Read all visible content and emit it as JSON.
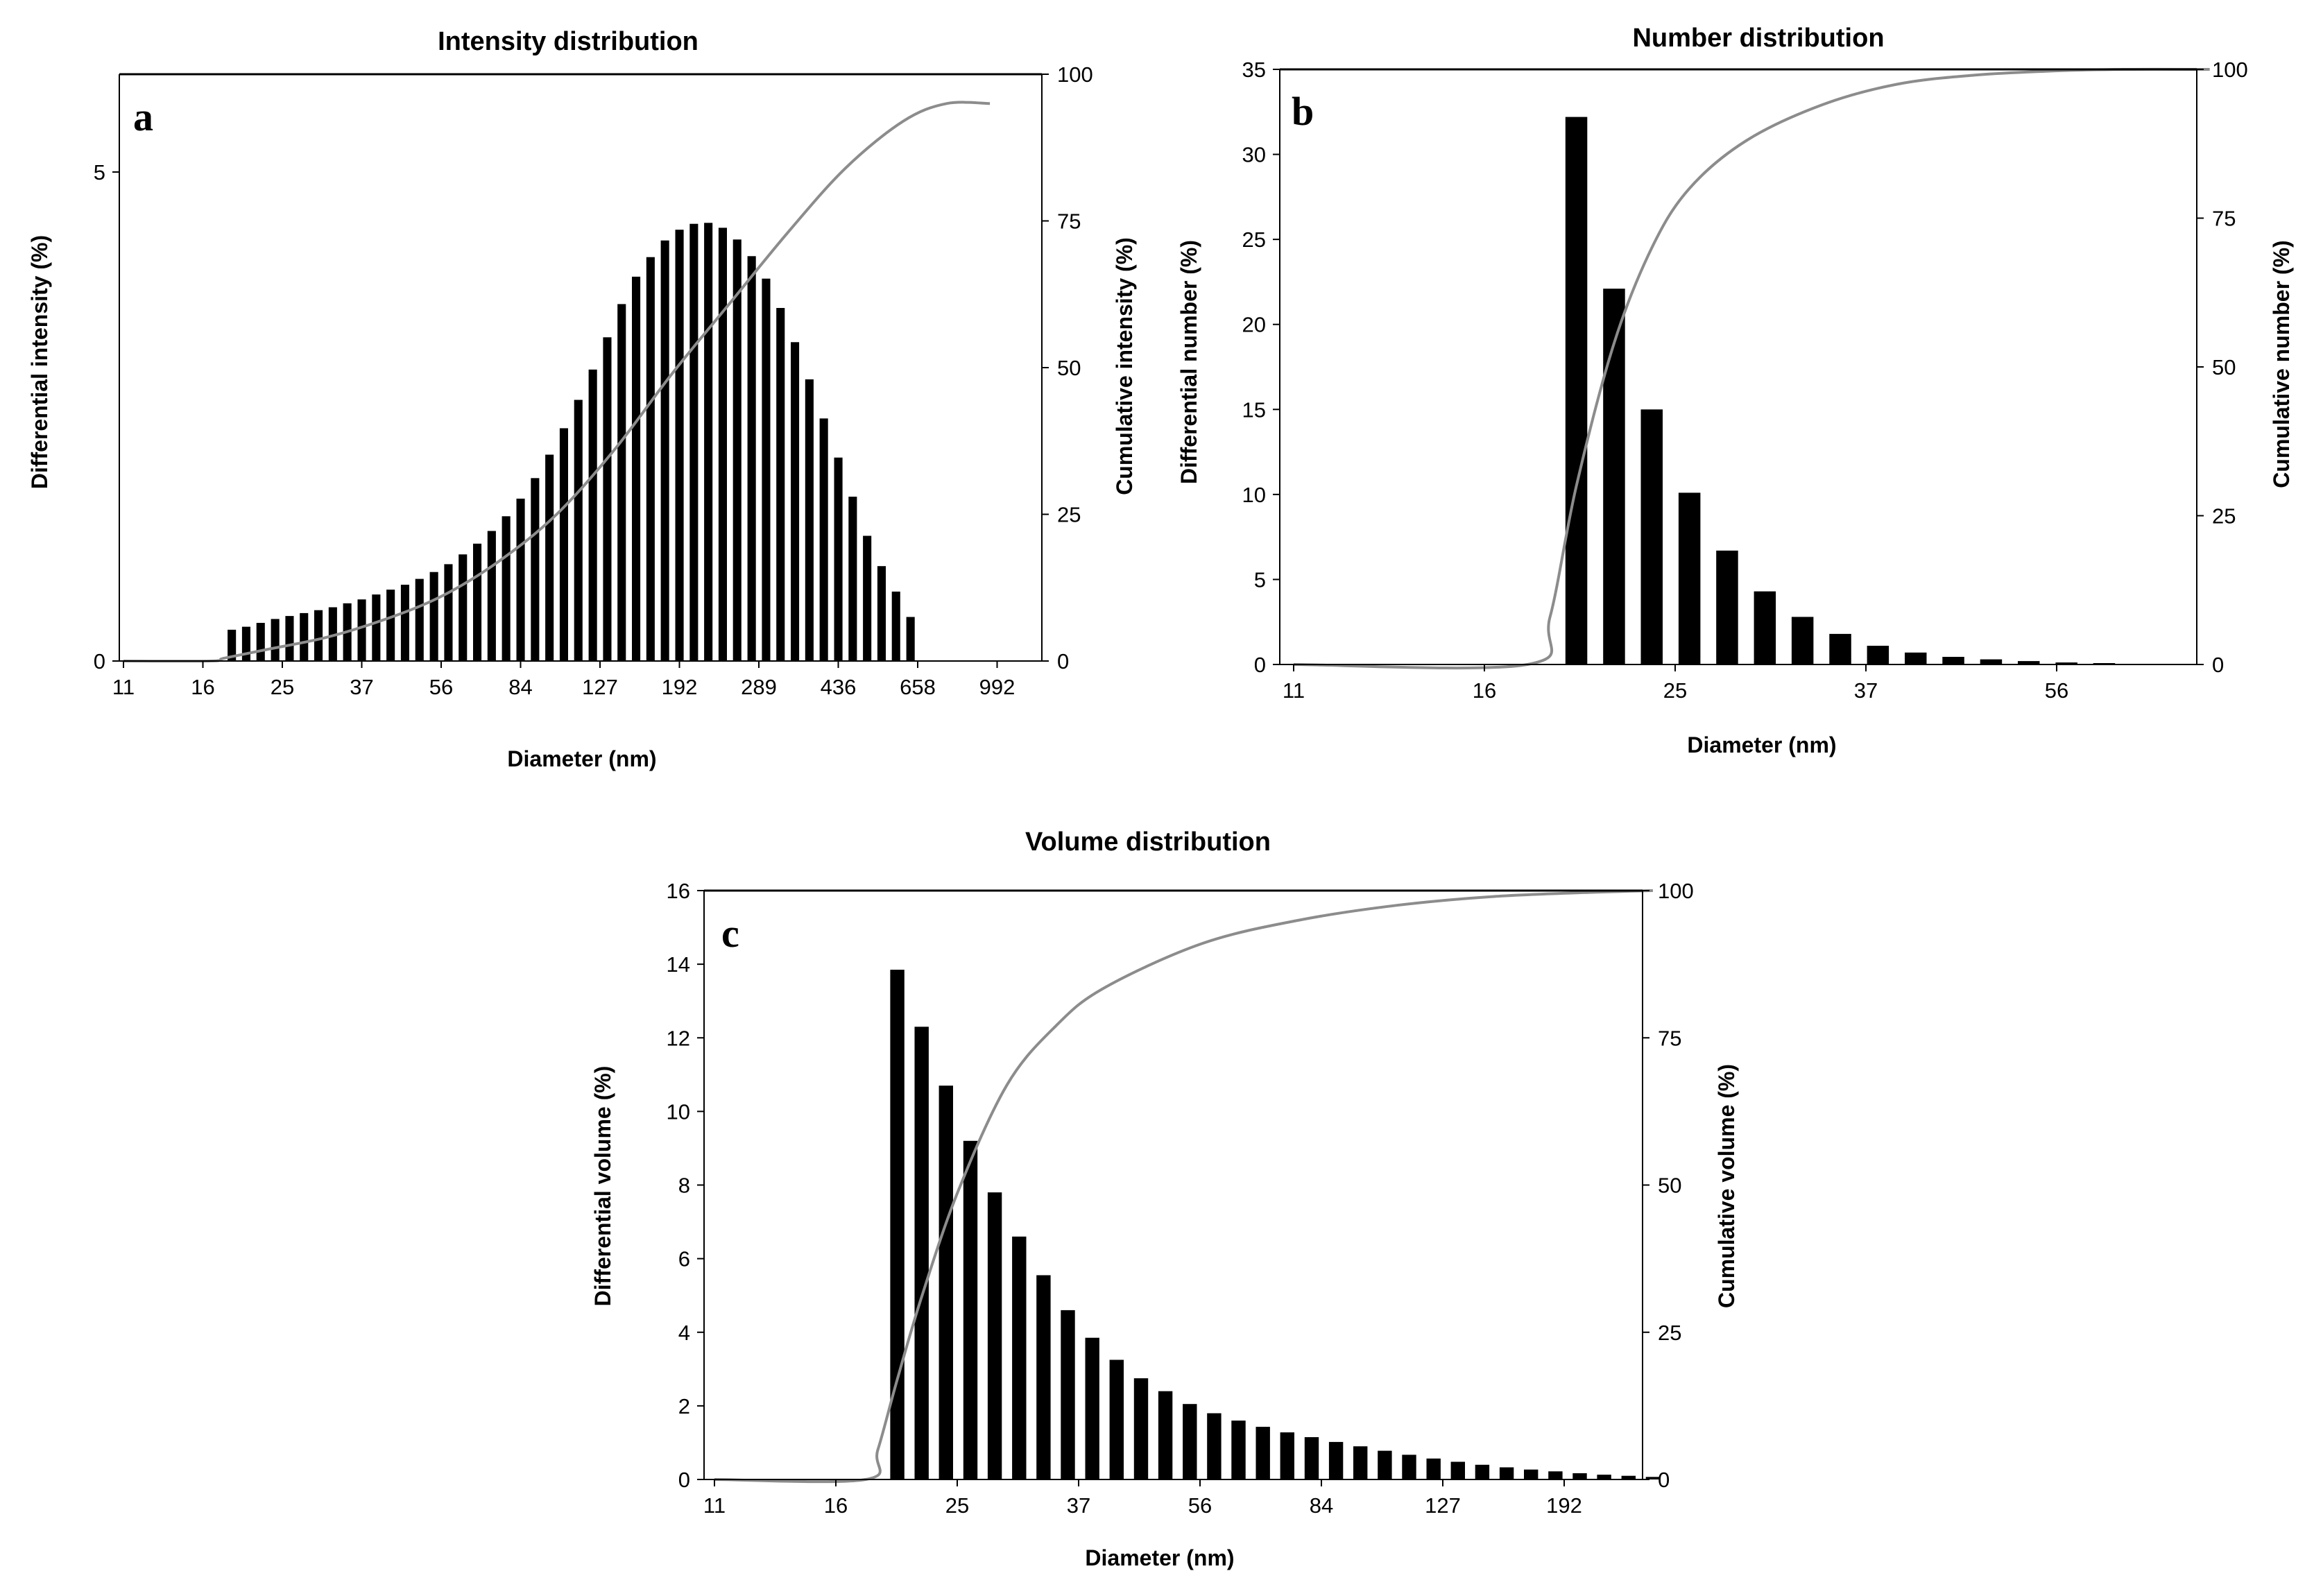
{
  "colors": {
    "bars": "#000000",
    "cumulative_line": "#8c8c8c",
    "axes": "#000000"
  },
  "chart_data": [
    {
      "id": "a",
      "type": "bar",
      "panel_label": "a",
      "title": "Intensity distribution",
      "xlabel": "Diameter (nm)",
      "ylabel": "Differential intensity (%)",
      "y2label": "Cumulative intensity (%)",
      "x_tick_labels": [
        "11",
        "16",
        "25",
        "37",
        "56",
        "84",
        "127",
        "192",
        "289",
        "436",
        "658",
        "992"
      ],
      "y_ticks": [
        0,
        5
      ],
      "y2_ticks": [
        0,
        25,
        50,
        75,
        100
      ],
      "ylim": [
        0,
        6
      ],
      "y2lim": [
        0,
        100
      ],
      "bin_range": [
        0,
        60
      ],
      "first_bar_bin": 7,
      "values": [
        0.32,
        0.35,
        0.39,
        0.43,
        0.46,
        0.49,
        0.52,
        0.55,
        0.59,
        0.63,
        0.68,
        0.73,
        0.78,
        0.84,
        0.91,
        0.99,
        1.09,
        1.2,
        1.33,
        1.48,
        1.66,
        1.87,
        2.11,
        2.38,
        2.67,
        2.98,
        3.31,
        3.65,
        3.93,
        4.13,
        4.3,
        4.41,
        4.47,
        4.48,
        4.43,
        4.31,
        4.14,
        3.91,
        3.61,
        3.26,
        2.88,
        2.48,
        2.08,
        1.68,
        1.28,
        0.97,
        0.71,
        0.45
      ],
      "cumulative": [
        [
          0,
          0
        ],
        [
          6,
          0
        ],
        [
          7,
          0.5
        ],
        [
          10,
          2
        ],
        [
          14,
          4
        ],
        [
          18,
          7
        ],
        [
          22,
          11
        ],
        [
          26,
          17
        ],
        [
          30,
          25
        ],
        [
          34,
          36
        ],
        [
          38,
          49
        ],
        [
          42,
          61
        ],
        [
          46,
          73
        ],
        [
          50,
          84
        ],
        [
          54,
          92
        ],
        [
          57,
          95
        ],
        [
          60,
          95
        ]
      ]
    },
    {
      "id": "b",
      "type": "bar",
      "panel_label": "b",
      "title": "Number distribution",
      "xlabel": "Diameter (nm)",
      "ylabel": "Differential number (%)",
      "y2label": "Cumulative number (%)",
      "x_tick_labels": [
        "11",
        "16",
        "25",
        "37",
        "56"
      ],
      "y_ticks": [
        0,
        5,
        10,
        15,
        20,
        25,
        30,
        35
      ],
      "y2_ticks": [
        0,
        25,
        50,
        75,
        100
      ],
      "ylim": [
        0,
        35
      ],
      "y2lim": [
        0,
        100
      ],
      "bin_range": [
        0,
        24.3
      ],
      "first_bar_bin": 7,
      "values": [
        32.2,
        22.1,
        15.0,
        10.1,
        6.7,
        4.3,
        2.8,
        1.8,
        1.1,
        0.7,
        0.45,
        0.3,
        0.2,
        0.12,
        0.08
      ],
      "cumulative": [
        [
          0,
          0
        ],
        [
          6.2,
          0
        ],
        [
          6.8,
          8
        ],
        [
          7.5,
          30
        ],
        [
          8.5,
          54
        ],
        [
          9.5,
          70
        ],
        [
          10.5,
          80
        ],
        [
          12,
          88
        ],
        [
          14,
          94
        ],
        [
          16,
          97.5
        ],
        [
          18,
          99
        ],
        [
          20,
          99.7
        ],
        [
          22,
          100
        ],
        [
          24.3,
          100
        ]
      ]
    },
    {
      "id": "c",
      "type": "bar",
      "panel_label": "c",
      "title": "Volume distribution",
      "xlabel": "Diameter (nm)",
      "ylabel": "Differential volume (%)",
      "y2label": "Cumulative volume (%)",
      "x_tick_labels": [
        "11",
        "16",
        "25",
        "37",
        "56",
        "84",
        "127",
        "192"
      ],
      "y_ticks": [
        0,
        2,
        4,
        6,
        8,
        10,
        12,
        14,
        16
      ],
      "y2_ticks": [
        0,
        25,
        50,
        75,
        100
      ],
      "ylim": [
        0,
        16
      ],
      "y2lim": [
        0,
        100
      ],
      "bin_range": [
        0,
        38.5
      ],
      "first_bar_bin": 7,
      "values": [
        13.85,
        12.3,
        10.7,
        9.2,
        7.8,
        6.6,
        5.55,
        4.6,
        3.85,
        3.25,
        2.75,
        2.4,
        2.05,
        1.8,
        1.6,
        1.43,
        1.28,
        1.15,
        1.02,
        0.9,
        0.78,
        0.67,
        0.57,
        0.48,
        0.4,
        0.33,
        0.27,
        0.22,
        0.17,
        0.13,
        0.1,
        0.07
      ],
      "cumulative": [
        [
          0,
          0
        ],
        [
          6.2,
          0
        ],
        [
          6.7,
          5
        ],
        [
          7.5,
          17
        ],
        [
          8.5,
          31
        ],
        [
          10,
          49
        ],
        [
          12,
          67
        ],
        [
          14,
          77
        ],
        [
          16,
          83.5
        ],
        [
          20,
          91
        ],
        [
          24,
          95
        ],
        [
          28,
          97.5
        ],
        [
          32,
          99
        ],
        [
          36,
          99.7
        ],
        [
          38.5,
          100
        ]
      ]
    }
  ]
}
